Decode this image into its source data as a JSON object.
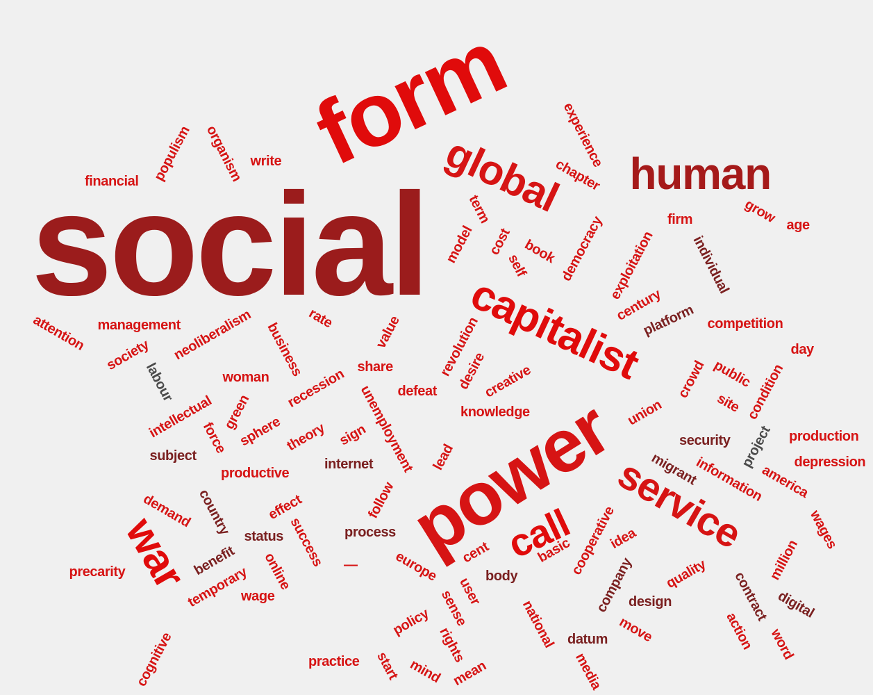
{
  "colors": {
    "background": "#f0f0f0",
    "bright_red": "#e00b0b",
    "red": "#d61414",
    "dark_red": "#9b1c1c",
    "maroon": "#7a2020",
    "grey": "#4b4b4b"
  },
  "words": [
    {
      "text": "social",
      "color": "#9b1c1c"
    },
    {
      "text": "form",
      "color": "#e00b0b"
    },
    {
      "text": "power",
      "color": "#d61414"
    },
    {
      "text": "capitalist",
      "color": "#e00b0b"
    },
    {
      "text": "human",
      "color": "#a51a1a"
    },
    {
      "text": "global",
      "color": "#d61414"
    },
    {
      "text": "service",
      "color": "#d61414"
    },
    {
      "text": "war",
      "color": "#e00b0b"
    },
    {
      "text": "call",
      "color": "#e00b0b"
    },
    {
      "text": "financial",
      "color": "#d61414"
    },
    {
      "text": "populism",
      "color": "#d61414"
    },
    {
      "text": "organism",
      "color": "#d61414"
    },
    {
      "text": "write",
      "color": "#d61414"
    },
    {
      "text": "experience",
      "color": "#d61414"
    },
    {
      "text": "chapter",
      "color": "#d61414"
    },
    {
      "text": "firm",
      "color": "#d61414"
    },
    {
      "text": "grow",
      "color": "#d61414"
    },
    {
      "text": "age",
      "color": "#d61414"
    },
    {
      "text": "term",
      "color": "#d61414"
    },
    {
      "text": "model",
      "color": "#d61414"
    },
    {
      "text": "cost",
      "color": "#d61414"
    },
    {
      "text": "self",
      "color": "#d61414"
    },
    {
      "text": "book",
      "color": "#d61414"
    },
    {
      "text": "democracy",
      "color": "#d61414"
    },
    {
      "text": "exploitation",
      "color": "#d61414"
    },
    {
      "text": "individual",
      "color": "#7a2020"
    },
    {
      "text": "century",
      "color": "#d61414"
    },
    {
      "text": "platform",
      "color": "#7a2020"
    },
    {
      "text": "competition",
      "color": "#d61414"
    },
    {
      "text": "day",
      "color": "#d61414"
    },
    {
      "text": "attention",
      "color": "#d61414"
    },
    {
      "text": "management",
      "color": "#d61414"
    },
    {
      "text": "neoliberalism",
      "color": "#d61414"
    },
    {
      "text": "rate",
      "color": "#d61414"
    },
    {
      "text": "business",
      "color": "#d61414"
    },
    {
      "text": "value",
      "color": "#d61414"
    },
    {
      "text": "revolution",
      "color": "#d61414"
    },
    {
      "text": "society",
      "color": "#d61414"
    },
    {
      "text": "labour",
      "color": "#4b4b4b"
    },
    {
      "text": "woman",
      "color": "#d61414"
    },
    {
      "text": "share",
      "color": "#d61414"
    },
    {
      "text": "desire",
      "color": "#d61414"
    },
    {
      "text": "creative",
      "color": "#d61414"
    },
    {
      "text": "crowd",
      "color": "#d61414"
    },
    {
      "text": "public",
      "color": "#d61414"
    },
    {
      "text": "condition",
      "color": "#d61414"
    },
    {
      "text": "recession",
      "color": "#d61414"
    },
    {
      "text": "defeat",
      "color": "#d61414"
    },
    {
      "text": "unemployment",
      "color": "#d61414"
    },
    {
      "text": "knowledge",
      "color": "#d61414"
    },
    {
      "text": "union",
      "color": "#d61414"
    },
    {
      "text": "site",
      "color": "#d61414"
    },
    {
      "text": "intellectual",
      "color": "#d61414"
    },
    {
      "text": "green",
      "color": "#d61414"
    },
    {
      "text": "force",
      "color": "#d61414"
    },
    {
      "text": "sphere",
      "color": "#d61414"
    },
    {
      "text": "theory",
      "color": "#d61414"
    },
    {
      "text": "sign",
      "color": "#d61414"
    },
    {
      "text": "security",
      "color": "#7a2020"
    },
    {
      "text": "project",
      "color": "#4b4b4b"
    },
    {
      "text": "production",
      "color": "#d61414"
    },
    {
      "text": "subject",
      "color": "#7a2020"
    },
    {
      "text": "internet",
      "color": "#7a2020"
    },
    {
      "text": "lead",
      "color": "#d61414"
    },
    {
      "text": "migrant",
      "color": "#7a2020"
    },
    {
      "text": "information",
      "color": "#d61414"
    },
    {
      "text": "depression",
      "color": "#d61414"
    },
    {
      "text": "productive",
      "color": "#d61414"
    },
    {
      "text": "america",
      "color": "#d61414"
    },
    {
      "text": "demand",
      "color": "#d61414"
    },
    {
      "text": "country",
      "color": "#7a2020"
    },
    {
      "text": "effect",
      "color": "#d61414"
    },
    {
      "text": "follow",
      "color": "#d61414"
    },
    {
      "text": "status",
      "color": "#7a2020"
    },
    {
      "text": "success",
      "color": "#d61414"
    },
    {
      "text": "process",
      "color": "#7a2020"
    },
    {
      "text": "cooperative",
      "color": "#d61414"
    },
    {
      "text": "idea",
      "color": "#d61414"
    },
    {
      "text": "wages",
      "color": "#d61414"
    },
    {
      "text": "precarity",
      "color": "#d61414"
    },
    {
      "text": "benefit",
      "color": "#7a2020"
    },
    {
      "text": "online",
      "color": "#d61414"
    },
    {
      "text": "cent",
      "color": "#d61414"
    },
    {
      "text": "basic",
      "color": "#d61414"
    },
    {
      "text": "million",
      "color": "#d61414"
    },
    {
      "text": "temporary",
      "color": "#d61414"
    },
    {
      "text": "europe",
      "color": "#d61414"
    },
    {
      "text": "body",
      "color": "#7a2020"
    },
    {
      "text": "company",
      "color": "#7a2020"
    },
    {
      "text": "quality",
      "color": "#d61414"
    },
    {
      "text": "contract",
      "color": "#7a2020"
    },
    {
      "text": "wage",
      "color": "#d61414"
    },
    {
      "text": "user",
      "color": "#d61414"
    },
    {
      "text": "sense",
      "color": "#d61414"
    },
    {
      "text": "design",
      "color": "#7a2020"
    },
    {
      "text": "digital",
      "color": "#7a2020"
    },
    {
      "text": "policy",
      "color": "#d61414"
    },
    {
      "text": "national",
      "color": "#d61414"
    },
    {
      "text": "move",
      "color": "#d61414"
    },
    {
      "text": "action",
      "color": "#d61414"
    },
    {
      "text": "word",
      "color": "#d61414"
    },
    {
      "text": "cognitive",
      "color": "#d61414"
    },
    {
      "text": "rights",
      "color": "#d61414"
    },
    {
      "text": "datum",
      "color": "#7a2020"
    },
    {
      "text": "practice",
      "color": "#d61414"
    },
    {
      "text": "start",
      "color": "#d61414"
    },
    {
      "text": "mind",
      "color": "#d61414"
    },
    {
      "text": "mean",
      "color": "#d61414"
    },
    {
      "text": "media",
      "color": "#d61414"
    },
    {
      "text": "—",
      "color": "#d61414"
    }
  ]
}
